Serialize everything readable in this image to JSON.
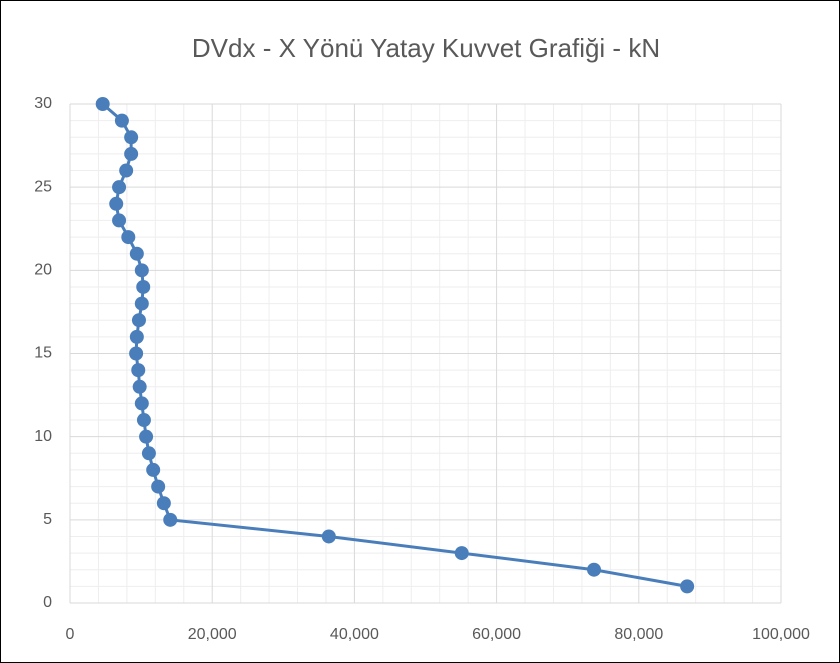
{
  "chart_data": {
    "type": "line",
    "title": "DVdx - X Yönü Yatay Kuvvet Grafiği - kN",
    "series": [
      {
        "color": "#4a7ebb",
        "x": [
          86800,
          73700,
          55100,
          36400,
          14100,
          13200,
          12400,
          11700,
          11100,
          10700,
          10400,
          10100,
          9800,
          9600,
          9300,
          9400,
          9700,
          10100,
          10300,
          10100,
          9400,
          8200,
          6900,
          6500,
          6900,
          7900,
          8600,
          8600,
          7300,
          4600
        ],
        "values": [
          1,
          2,
          3,
          4,
          5,
          6,
          7,
          8,
          9,
          10,
          11,
          12,
          13,
          14,
          15,
          16,
          17,
          18,
          19,
          20,
          21,
          22,
          23,
          24,
          25,
          26,
          27,
          28,
          29,
          30
        ]
      }
    ],
    "xlim": [
      0,
      100000
    ],
    "xticks": [
      0,
      {
        "value": 20000,
        "label": "20,000"
      },
      {
        "value": 40000,
        "label": "40,000"
      },
      {
        "value": 60000,
        "label": "60,000"
      },
      {
        "value": 80000,
        "label": "80,000"
      },
      {
        "value": 100000,
        "label": "100,000"
      }
    ],
    "ylim": [
      0,
      30
    ],
    "yticks": [
      0,
      5,
      10,
      15,
      20,
      25,
      30
    ],
    "grid": true,
    "minor_grid": true
  }
}
